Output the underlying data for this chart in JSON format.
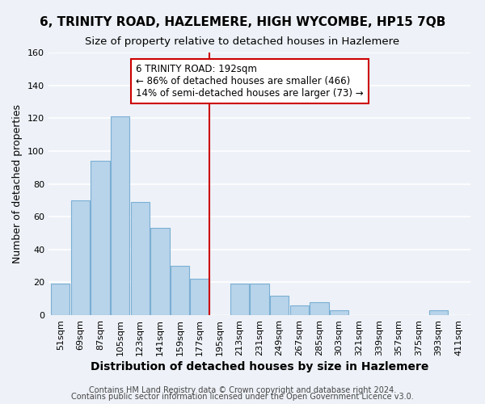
{
  "title": "6, TRINITY ROAD, HAZLEMERE, HIGH WYCOMBE, HP15 7QB",
  "subtitle": "Size of property relative to detached houses in Hazlemere",
  "xlabel": "Distribution of detached houses by size in Hazlemere",
  "ylabel": "Number of detached properties",
  "bar_labels": [
    "51sqm",
    "69sqm",
    "87sqm",
    "105sqm",
    "123sqm",
    "141sqm",
    "159sqm",
    "177sqm",
    "195sqm",
    "213sqm",
    "231sqm",
    "249sqm",
    "267sqm",
    "285sqm",
    "303sqm",
    "321sqm",
    "339sqm",
    "357sqm",
    "375sqm",
    "393sqm",
    "411sqm"
  ],
  "bar_values": [
    19,
    70,
    94,
    121,
    69,
    53,
    30,
    22,
    0,
    19,
    19,
    12,
    6,
    8,
    3,
    0,
    0,
    0,
    0,
    3,
    0
  ],
  "bar_color": "#b8d4ea",
  "bar_edge_color": "#7aafd4",
  "vline_x_index": 8,
  "vline_color": "#cc0000",
  "annotation_text": "6 TRINITY ROAD: 192sqm\n← 86% of detached houses are smaller (466)\n14% of semi-detached houses are larger (73) →",
  "annotation_box_color": "#ffffff",
  "annotation_box_edge": "#cc0000",
  "ylim": [
    0,
    160
  ],
  "yticks": [
    0,
    20,
    40,
    60,
    80,
    100,
    120,
    140,
    160
  ],
  "footer_line1": "Contains HM Land Registry data © Crown copyright and database right 2024.",
  "footer_line2": "Contains public sector information licensed under the Open Government Licence v3.0.",
  "background_color": "#eef2f8",
  "plot_bg_color": "#eef2f8",
  "grid_color": "#ffffff",
  "title_fontsize": 11,
  "subtitle_fontsize": 9.5,
  "xlabel_fontsize": 10,
  "ylabel_fontsize": 9,
  "tick_fontsize": 8,
  "annotation_fontsize": 8.5,
  "footer_fontsize": 7
}
